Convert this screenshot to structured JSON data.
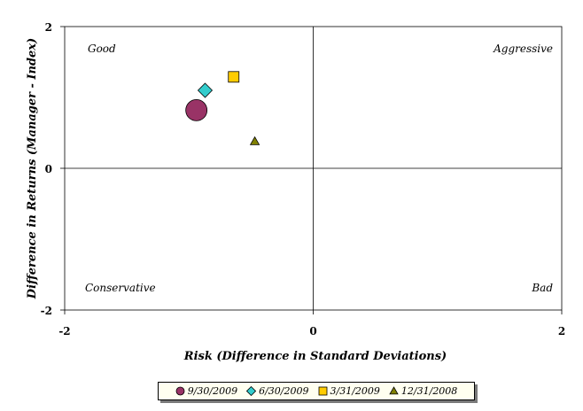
{
  "chart_data": {
    "type": "scatter",
    "xlabel": "Risk (Difference in Standard Deviations)",
    "ylabel": "Difference in Returns (Manager - Index)",
    "xlim": [
      -2,
      2
    ],
    "ylim": [
      -2,
      2
    ],
    "x_ticks": [
      "-2",
      "0",
      "2"
    ],
    "y_ticks": [
      "2",
      "0",
      "-2"
    ],
    "grid": false,
    "legend_position": "bottom",
    "quadrant_labels": {
      "top_left": "Good",
      "top_right": "Aggressive",
      "bottom_left": "Conservative",
      "bottom_right": "Bad"
    },
    "series": [
      {
        "name": "9/30/2009",
        "marker": "circle",
        "color": "#993366",
        "x": -0.94,
        "y": 0.82
      },
      {
        "name": "6/30/2009",
        "marker": "diamond",
        "color": "#33cccc",
        "x": -0.87,
        "y": 1.1
      },
      {
        "name": "3/31/2009",
        "marker": "square",
        "color": "#ffcc00",
        "x": -0.64,
        "y": 1.29
      },
      {
        "name": "12/31/2008",
        "marker": "triangle",
        "color": "#808000",
        "x": -0.47,
        "y": 0.38
      }
    ]
  }
}
